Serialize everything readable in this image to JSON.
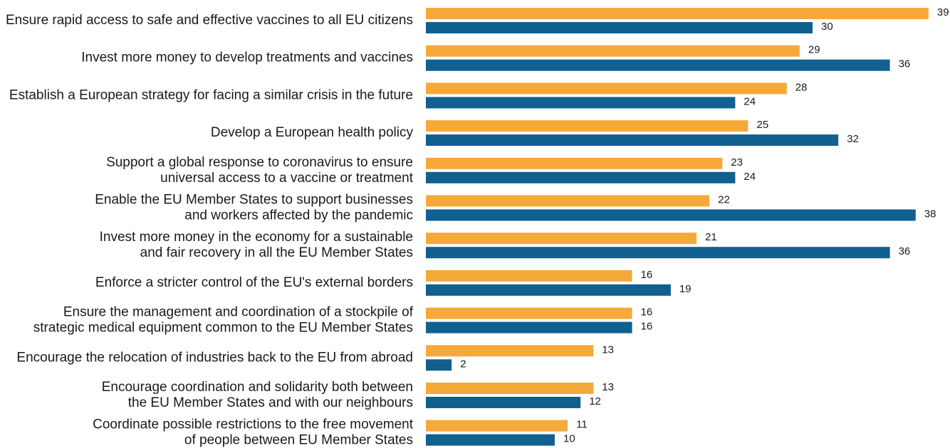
{
  "chart_data": {
    "type": "bar",
    "orientation": "horizontal",
    "title": "",
    "xlabel": "",
    "ylabel": "",
    "grid": false,
    "legend": "none",
    "xlim": [
      0,
      39
    ],
    "categories": [
      [
        "Ensure rapid access to safe and effective vaccines to all EU citizens"
      ],
      [
        "Invest more money to develop treatments and vaccines"
      ],
      [
        "Establish a European strategy for facing a similar crisis in the future"
      ],
      [
        "Develop a European health policy"
      ],
      [
        "Support a global response to coronavirus to ensure",
        "universal access to a vaccine or treatment"
      ],
      [
        "Enable the EU Member States to support businesses",
        "and workers affected by the pandemic"
      ],
      [
        "Invest more money in the economy for a sustainable",
        "and fair recovery in all the EU Member States"
      ],
      [
        "Enforce a stricter control of the EU's external borders"
      ],
      [
        "Ensure the management and coordination of a stockpile of",
        "strategic medical equipment common to the EU Member States"
      ],
      [
        "Encourage the relocation of industries back to the EU from abroad"
      ],
      [
        "Encourage coordination and solidarity both between",
        "the EU Member States and with our neighbours"
      ],
      [
        "Coordinate possible restrictions to the free movement",
        "of people between EU Member States"
      ]
    ],
    "series": [
      {
        "color": "#F5A93B",
        "values": [
          39,
          29,
          28,
          25,
          23,
          22,
          21,
          16,
          16,
          13,
          13,
          11
        ]
      },
      {
        "color": "#11608F",
        "values": [
          30,
          36,
          24,
          32,
          24,
          38,
          36,
          19,
          16,
          2,
          12,
          10
        ]
      }
    ]
  }
}
